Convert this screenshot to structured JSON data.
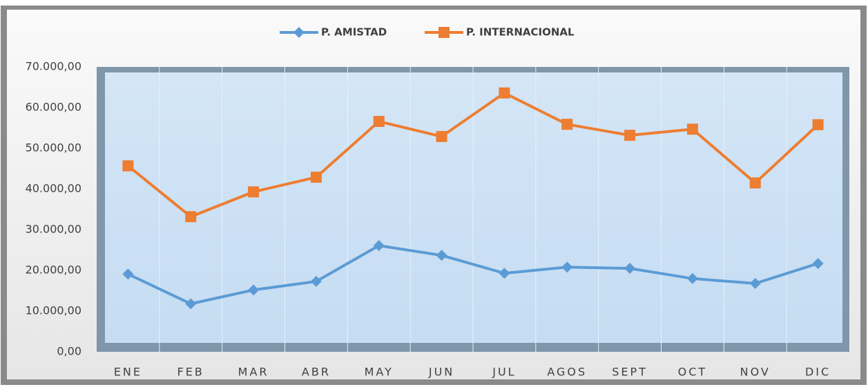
{
  "chart_data": {
    "type": "line",
    "categories": [
      "ENE",
      "FEB",
      "MAR",
      "ABR",
      "MAY",
      "JUN",
      "JUL",
      "AGOS",
      "SEPT",
      "OCT",
      "NOV",
      "DIC"
    ],
    "series": [
      {
        "name": "P. AMISTAD",
        "color": "#5b9bd5",
        "marker": "diamond",
        "values": [
          19100,
          11800,
          15200,
          17300,
          26100,
          23700,
          19300,
          20800,
          20500,
          18000,
          16800,
          21700
        ]
      },
      {
        "name": "P. INTERNACIONAL",
        "color": "#ed7d31",
        "marker": "square",
        "values": [
          45700,
          33200,
          39300,
          42900,
          56600,
          52900,
          63600,
          55900,
          53200,
          54700,
          41500,
          55800
        ]
      }
    ],
    "ylim": [
      0,
      70000
    ],
    "yticks": [
      {
        "value": 0,
        "label": "0,00"
      },
      {
        "value": 10000,
        "label": "10.000,00"
      },
      {
        "value": 20000,
        "label": "20.000,00"
      },
      {
        "value": 30000,
        "label": "30.000,00"
      },
      {
        "value": 40000,
        "label": "40.000,00"
      },
      {
        "value": 50000,
        "label": "50.000,00"
      },
      {
        "value": 60000,
        "label": "60.000,00"
      },
      {
        "value": 70000,
        "label": "70.000,00"
      }
    ],
    "grid": true,
    "legend": "top"
  }
}
